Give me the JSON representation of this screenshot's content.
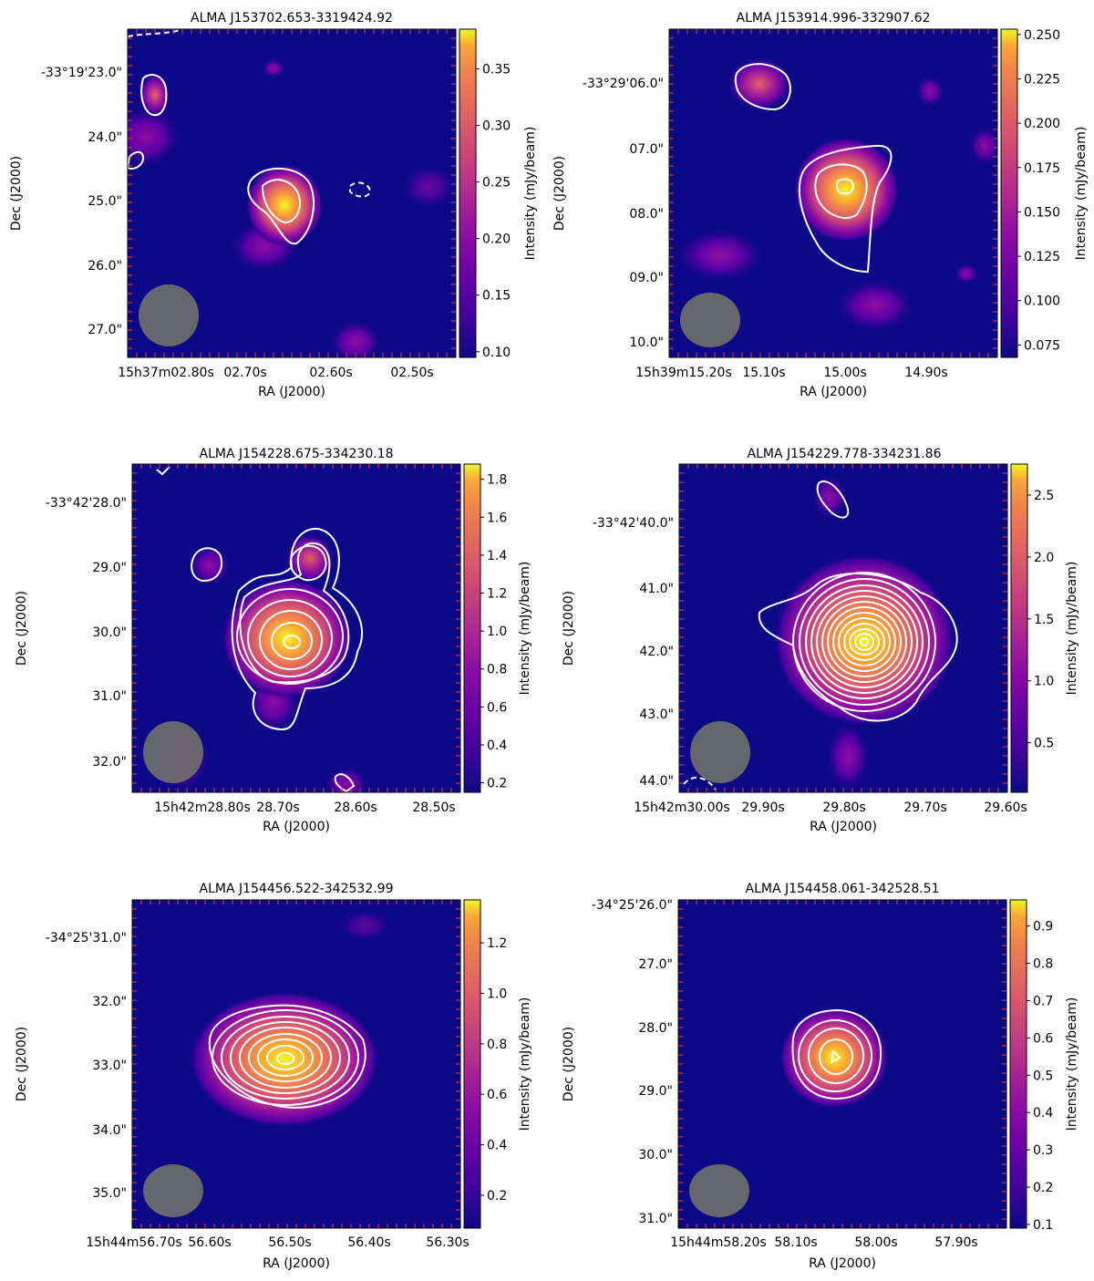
{
  "figure": {
    "description_units": {
      "colorbar_label": "Intensity  (mJy/beam)",
      "xlabel": "RA (J2000)",
      "ylabel": "Dec (J2000)"
    }
  },
  "chart_data": [
    {
      "type": "heatmap",
      "title": "ALMA J153702.653-3319424.92",
      "xlabel": "RA (J2000)",
      "ylabel": "Dec (J2000)",
      "colorbar_label": "Intensity  (mJy/beam)",
      "colormap": "plasma",
      "colorbar_range": [
        0.095,
        0.385
      ],
      "colorbar_ticks": [
        {
          "value": 0.1,
          "label": "0.10"
        },
        {
          "value": 0.15,
          "label": "0.15"
        },
        {
          "value": 0.2,
          "label": "0.20"
        },
        {
          "value": 0.25,
          "label": "0.25"
        },
        {
          "value": 0.3,
          "label": "0.30"
        },
        {
          "value": 0.35,
          "label": "0.35"
        }
      ],
      "x_ticks": [
        "15h37m02.80s",
        "02.70s",
        "02.60s",
        "02.50s"
      ],
      "y_ticks": [
        "-33°19'23.0\"",
        "24.0\"",
        "25.0\"",
        "26.0\"",
        "27.0\""
      ],
      "beam": "ellipse (lower-left)",
      "sources": [
        {
          "role": "target",
          "peak": 0.38,
          "contours": 2
        },
        {
          "role": "companion",
          "peak": 0.3,
          "contours": 1
        },
        {
          "role": "faint",
          "peak": 0.22,
          "contours": 1
        }
      ]
    },
    {
      "type": "heatmap",
      "title": "ALMA J153914.996-332907.62",
      "xlabel": "RA (J2000)",
      "ylabel": "Dec (J2000)",
      "colorbar_label": "Intensity  (mJy/beam)",
      "colormap": "plasma",
      "colorbar_range": [
        0.068,
        0.253
      ],
      "colorbar_ticks": [
        {
          "value": 0.075,
          "label": "0.075"
        },
        {
          "value": 0.1,
          "label": "0.100"
        },
        {
          "value": 0.125,
          "label": "0.125"
        },
        {
          "value": 0.15,
          "label": "0.150"
        },
        {
          "value": 0.175,
          "label": "0.175"
        },
        {
          "value": 0.2,
          "label": "0.200"
        },
        {
          "value": 0.225,
          "label": "0.225"
        },
        {
          "value": 0.25,
          "label": "0.250"
        }
      ],
      "x_ticks": [
        "15h39m15.20s",
        "15.10s",
        "15.00s",
        "14.90s"
      ],
      "y_ticks": [
        "-33°29'06.0\"",
        "07.0\"",
        "08.0\"",
        "09.0\"",
        "10.0\""
      ],
      "beam": "ellipse (lower-left)",
      "sources": [
        {
          "role": "target",
          "peak": 0.25,
          "contours": 3
        },
        {
          "role": "companion",
          "peak": 0.18,
          "contours": 1
        }
      ]
    },
    {
      "type": "heatmap",
      "title": "ALMA J154228.675-334230.18",
      "xlabel": "RA (J2000)",
      "ylabel": "Dec (J2000)",
      "colorbar_label": "Intensity  (mJy/beam)",
      "colormap": "plasma",
      "colorbar_range": [
        0.15,
        1.88
      ],
      "colorbar_ticks": [
        {
          "value": 0.2,
          "label": "0.2"
        },
        {
          "value": 0.4,
          "label": "0.4"
        },
        {
          "value": 0.6,
          "label": "0.6"
        },
        {
          "value": 0.8,
          "label": "0.8"
        },
        {
          "value": 1.0,
          "label": "1.0"
        },
        {
          "value": 1.2,
          "label": "1.2"
        },
        {
          "value": 1.4,
          "label": "1.4"
        },
        {
          "value": 1.6,
          "label": "1.6"
        },
        {
          "value": 1.8,
          "label": "1.8"
        }
      ],
      "x_ticks": [
        "15h42m28.80s",
        "28.70s",
        "28.60s",
        "28.50s"
      ],
      "y_ticks": [
        "-33°42'28.0\"",
        "29.0\"",
        "30.0\"",
        "31.0\"",
        "32.0\""
      ],
      "beam": "ellipse (lower-left)",
      "sources": [
        {
          "role": "target",
          "peak": 1.85,
          "contours": 7
        },
        {
          "role": "companion",
          "peak": 0.55,
          "contours": 1
        }
      ]
    },
    {
      "type": "heatmap",
      "title": "ALMA J154229.778-334231.86",
      "xlabel": "RA (J2000)",
      "ylabel": "Dec (J2000)",
      "colorbar_label": "Intensity  (mJy/beam)",
      "colormap": "plasma",
      "colorbar_range": [
        0.1,
        2.75
      ],
      "colorbar_ticks": [
        {
          "value": 0.5,
          "label": "0.5"
        },
        {
          "value": 1.0,
          "label": "1.0"
        },
        {
          "value": 1.5,
          "label": "1.5"
        },
        {
          "value": 2.0,
          "label": "2.0"
        },
        {
          "value": 2.5,
          "label": "2.5"
        }
      ],
      "x_ticks": [
        "15h42m30.00s",
        "29.90s",
        "29.80s",
        "29.70s",
        "29.60s"
      ],
      "y_ticks": [
        "-33°42'40.0\"",
        "41.0\"",
        "42.0\"",
        "43.0\"",
        "44.0\""
      ],
      "beam": "ellipse (lower-left)",
      "sources": [
        {
          "role": "target",
          "peak": 2.7,
          "contours": 14
        }
      ]
    },
    {
      "type": "heatmap",
      "title": "ALMA J154456.522-342532.99",
      "xlabel": "RA (J2000)",
      "ylabel": "Dec (J2000)",
      "colorbar_label": "Intensity  (mJy/beam)",
      "colormap": "plasma",
      "colorbar_range": [
        0.07,
        1.37
      ],
      "colorbar_ticks": [
        {
          "value": 0.2,
          "label": "0.2"
        },
        {
          "value": 0.4,
          "label": "0.4"
        },
        {
          "value": 0.6,
          "label": "0.6"
        },
        {
          "value": 0.8,
          "label": "0.8"
        },
        {
          "value": 1.0,
          "label": "1.0"
        },
        {
          "value": 1.2,
          "label": "1.2"
        }
      ],
      "x_ticks": [
        "15h44m56.70s",
        "56.60s",
        "56.50s",
        "56.40s",
        "56.30s"
      ],
      "y_ticks": [
        "-34°25'31.0\"",
        "32.0\"",
        "33.0\"",
        "34.0\"",
        "35.0\""
      ],
      "beam": "ellipse (lower-left)",
      "sources": [
        {
          "role": "target",
          "peak": 1.33,
          "contours": 9
        }
      ]
    },
    {
      "type": "heatmap",
      "title": "ALMA J154458.061-342528.51",
      "xlabel": "RA (J2000)",
      "ylabel": "Dec (J2000)",
      "colorbar_label": "Intensity  (mJy/beam)",
      "colormap": "plasma",
      "colorbar_range": [
        0.09,
        0.97
      ],
      "colorbar_ticks": [
        {
          "value": 0.1,
          "label": "0.1"
        },
        {
          "value": 0.2,
          "label": "0.2"
        },
        {
          "value": 0.3,
          "label": "0.3"
        },
        {
          "value": 0.4,
          "label": "0.4"
        },
        {
          "value": 0.5,
          "label": "0.5"
        },
        {
          "value": 0.6,
          "label": "0.6"
        },
        {
          "value": 0.7,
          "label": "0.7"
        },
        {
          "value": 0.8,
          "label": "0.8"
        },
        {
          "value": 0.9,
          "label": "0.9"
        }
      ],
      "x_ticks": [
        "15h44m58.20s",
        "58.10s",
        "58.00s",
        "57.90s"
      ],
      "y_ticks": [
        "-34°25'26.0\"",
        "27.0\"",
        "28.0\"",
        "29.0\"",
        "30.0\"",
        "31.0\""
      ],
      "beam": "ellipse (lower-left)",
      "sources": [
        {
          "role": "target",
          "peak": 0.95,
          "contours": 5
        }
      ]
    }
  ]
}
